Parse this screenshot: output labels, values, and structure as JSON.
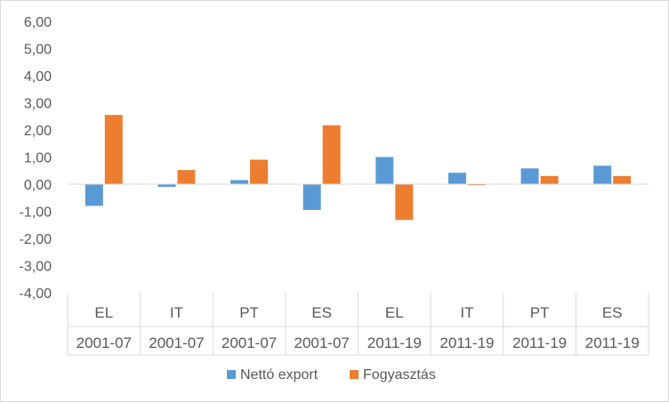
{
  "chart_data": {
    "type": "bar",
    "categories": [
      {
        "country": "EL",
        "period": "2001-07"
      },
      {
        "country": "IT",
        "period": "2001-07"
      },
      {
        "country": "PT",
        "period": "2001-07"
      },
      {
        "country": "ES",
        "period": "2001-07"
      },
      {
        "country": "EL",
        "period": "2011-19"
      },
      {
        "country": "IT",
        "period": "2011-19"
      },
      {
        "country": "PT",
        "period": "2011-19"
      },
      {
        "country": "ES",
        "period": "2011-19"
      }
    ],
    "series": [
      {
        "name": "Nettó export",
        "color": "#5b9bd5",
        "values": [
          -0.8,
          -0.1,
          0.15,
          -0.95,
          1.0,
          0.42,
          0.58,
          0.68
        ]
      },
      {
        "name": "Fogyasztás",
        "color": "#ed7d31",
        "values": [
          2.55,
          0.52,
          0.9,
          2.17,
          -1.32,
          -0.04,
          0.3,
          0.3
        ]
      }
    ],
    "ylim": [
      -4,
      6
    ],
    "yticks": [
      6,
      5,
      4,
      3,
      2,
      1,
      0,
      -1,
      -2,
      -3,
      -4
    ],
    "ytick_labels": [
      "6,00",
      "5,00",
      "4,00",
      "3,00",
      "2,00",
      "1,00",
      "0,00",
      "-1,00",
      "-2,00",
      "-3,00",
      "-4,00"
    ],
    "legend_position": "bottom",
    "grid": false
  }
}
